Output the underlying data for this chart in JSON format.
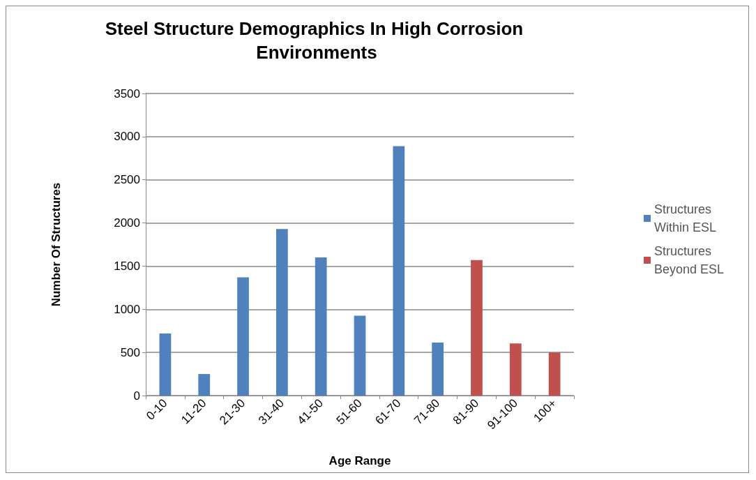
{
  "chart_data": {
    "type": "bar",
    "title": "Steel Structure Demographics In High Corrosion Environments",
    "xlabel": "Age Range",
    "ylabel": "Number Of Structures",
    "categories": [
      "0-10",
      "11-20",
      "21-30",
      "31-40",
      "41-50",
      "51-60",
      "61-70",
      "71-80",
      "81-90",
      "91-100",
      "100+"
    ],
    "series": [
      {
        "name": "Structures Within ESL",
        "color": "#4f81bd",
        "values": [
          720,
          250,
          1370,
          1930,
          1600,
          925,
          2890,
          615,
          null,
          null,
          null
        ]
      },
      {
        "name": "Structures Beyond ESL",
        "color": "#c0504d",
        "values": [
          null,
          null,
          null,
          null,
          null,
          null,
          null,
          null,
          1570,
          605,
          500
        ]
      }
    ],
    "ylim": [
      0,
      3500
    ],
    "yticks": [
      0,
      500,
      1000,
      1500,
      2000,
      2500,
      3000,
      3500
    ],
    "grid": "y",
    "legend": "right"
  }
}
